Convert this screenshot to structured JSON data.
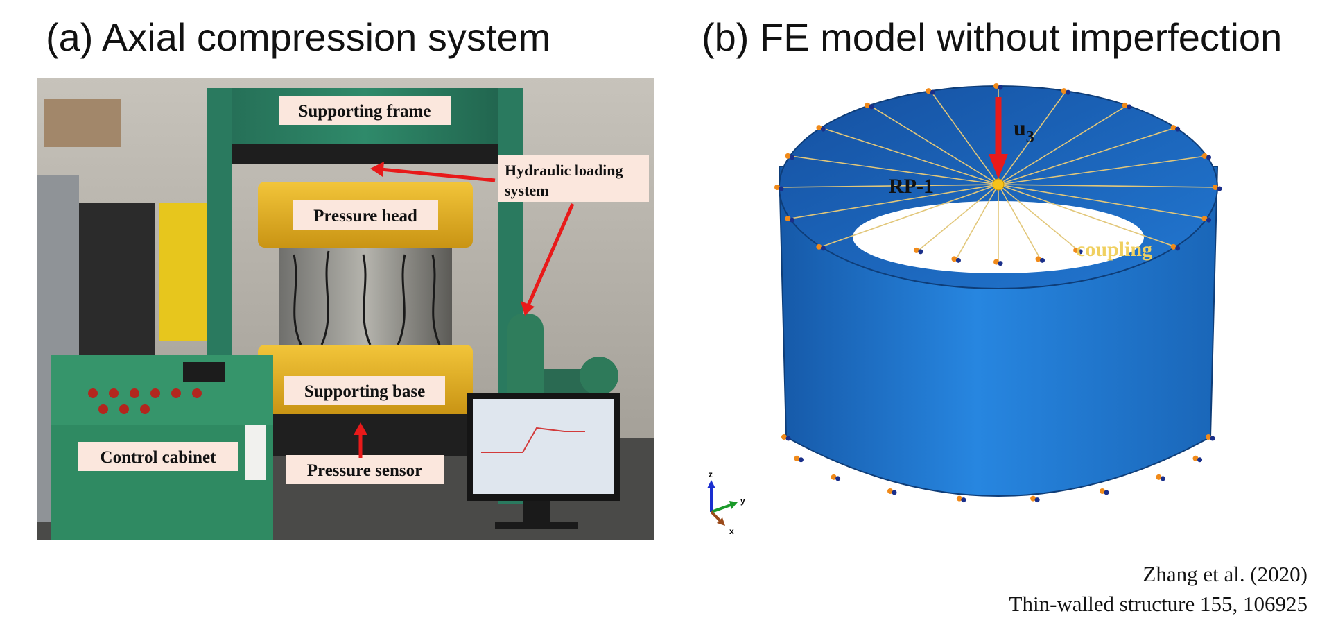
{
  "panel_a": {
    "title": "(a) Axial compression system",
    "labels": {
      "supporting_frame": "Supporting frame",
      "hydraulic_line1": "Hydraulic loading",
      "hydraulic_line2": "system",
      "pressure_head": "Pressure head",
      "supporting_base": "Supporting base",
      "control_cabinet": "Control cabinet",
      "pressure_sensor": "Pressure sensor"
    }
  },
  "panel_b": {
    "title": "(b) FE model without imperfection",
    "labels": {
      "reference_point": "RP-1",
      "load": "u",
      "load_subscript": "3",
      "coupling": "coupling"
    },
    "triad": {
      "z": "z",
      "y": "y",
      "x": "x"
    }
  },
  "citation": {
    "authors": "Zhang et al. (2020)",
    "journal": "Thin-walled structure 155, 106925"
  },
  "colors": {
    "frame_green": "#2f8a6a",
    "cylinder_blue": "#1f74c9",
    "arrow_red": "#e81a1a",
    "pressure_yellow": "#e8b81f",
    "coupling_text": "#f0d060",
    "label_bg": "#fbe7dd"
  }
}
